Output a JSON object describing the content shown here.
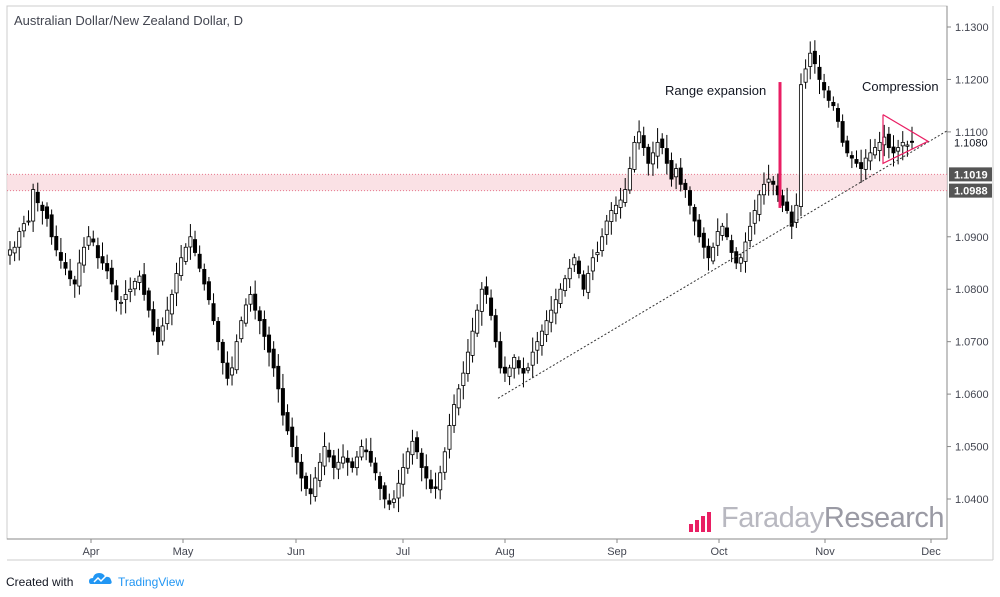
{
  "title": "Australian Dollar/New Zealand Dollar, D",
  "footer": {
    "created_with": "Created with",
    "tradingview": "TradingView"
  },
  "brand": {
    "part1": "Faraday",
    "part2": "Research"
  },
  "annotations": {
    "range_expansion": "Range expansion",
    "compression": "Compression"
  },
  "price_tags": {
    "upper": "1.1019",
    "lower": "1.0988",
    "last": "1.1080"
  },
  "colors": {
    "accent": "#e91e63",
    "zone_fill": "#f8d7dc",
    "candle": "#000000",
    "tag_bg": "#555555"
  },
  "chart_data": {
    "type": "candlestick",
    "y_ticks": [
      "1.1300",
      "1.1200",
      "1.1100",
      "1.0900",
      "1.0800",
      "1.0700",
      "1.0600",
      "1.0500",
      "1.0400"
    ],
    "x_ticks": [
      "Apr",
      "May",
      "Jun",
      "Jul",
      "Aug",
      "Sep",
      "Oct",
      "Nov",
      "Dec"
    ],
    "ylim": [
      1.034,
      1.133
    ],
    "zone": [
      1.0988,
      1.1019
    ],
    "trendline": {
      "from": [
        "late Jul",
        1.0592
      ],
      "to": [
        "Dec",
        1.1102
      ]
    },
    "range_expansion_candle": {
      "low": 1.0955,
      "high": 1.1195
    },
    "closes": [
      1.0875,
      1.088,
      1.091,
      1.0925,
      1.093,
      1.099,
      1.0965,
      1.095,
      1.0935,
      1.09,
      1.0875,
      1.0855,
      1.084,
      1.082,
      1.081,
      1.085,
      1.088,
      1.09,
      1.089,
      1.086,
      1.085,
      1.0835,
      1.081,
      1.078,
      1.0775,
      1.079,
      1.08,
      1.0815,
      1.0825,
      1.079,
      1.076,
      1.072,
      1.07,
      1.073,
      1.076,
      1.079,
      1.083,
      1.086,
      1.088,
      1.09,
      1.087,
      1.084,
      1.081,
      1.078,
      1.074,
      1.07,
      1.066,
      1.063,
      1.065,
      1.07,
      1.074,
      1.077,
      1.079,
      1.076,
      1.074,
      1.071,
      1.068,
      1.065,
      1.061,
      1.056,
      1.053,
      1.05,
      1.047,
      1.044,
      1.042,
      1.041,
      1.044,
      1.047,
      1.05,
      1.048,
      1.046,
      1.047,
      1.048,
      1.047,
      1.046,
      1.048,
      1.05,
      1.049,
      1.047,
      1.045,
      1.042,
      1.04,
      1.039,
      1.04,
      1.043,
      1.046,
      1.049,
      1.051,
      1.049,
      1.046,
      1.044,
      1.042,
      1.042,
      1.045,
      1.049,
      1.054,
      1.058,
      1.061,
      1.064,
      1.068,
      1.072,
      1.076,
      1.08,
      1.079,
      1.075,
      1.07,
      1.065,
      1.064,
      1.065,
      1.067,
      1.065,
      1.064,
      1.065,
      1.068,
      1.07,
      1.072,
      1.074,
      1.076,
      1.078,
      1.08,
      1.082,
      1.084,
      1.086,
      1.083,
      1.08,
      1.083,
      1.086,
      1.087,
      1.09,
      1.093,
      1.095,
      1.096,
      1.097,
      1.099,
      1.103,
      1.108,
      1.11,
      1.107,
      1.104,
      1.106,
      1.108,
      1.107,
      1.104,
      1.101,
      1.103,
      1.1,
      1.099,
      1.096,
      1.093,
      1.09,
      1.088,
      1.086,
      1.088,
      1.091,
      1.092,
      1.09,
      1.087,
      1.085,
      1.086,
      1.089,
      1.092,
      1.095,
      1.098,
      1.1,
      1.101,
      1.1,
      1.098,
      1.096,
      1.095,
      1.092,
      1.096,
      1.119,
      1.122,
      1.125,
      1.123,
      1.12,
      1.118,
      1.116,
      1.115,
      1.112,
      1.108,
      1.106,
      1.105,
      1.104,
      1.103,
      1.105,
      1.106,
      1.107,
      1.108,
      1.109,
      1.107,
      1.106,
      1.107,
      1.108,
      1.1075,
      1.108
    ]
  }
}
